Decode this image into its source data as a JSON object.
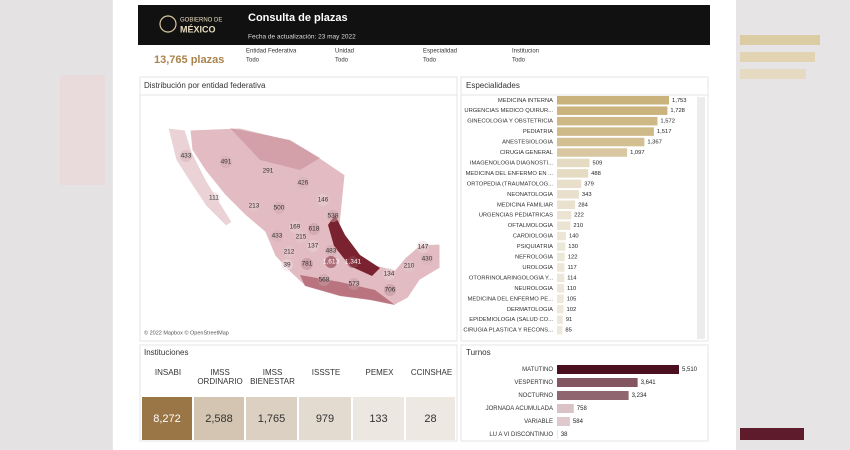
{
  "header": {
    "logo_top": "GOBIERNO DE",
    "logo_bottom": "MÉXICO",
    "title": "Consulta de plazas",
    "date": "Fecha de actualización: 23 may 2022"
  },
  "summary": {
    "total": "13,765 plazas",
    "filters": [
      {
        "label": "Entidad Federativa",
        "value": "Todo"
      },
      {
        "label": "Unidad",
        "value": "Todo"
      },
      {
        "label": "Especialidad",
        "value": "Todo"
      },
      {
        "label": "Institucion",
        "value": "Todo"
      }
    ]
  },
  "map": {
    "title": "Distribución por entidad federativa",
    "attribution": "© 2022 Mapbox © OpenStreetMap",
    "color_range": [
      "#f3e3e5",
      "#7b2231"
    ],
    "values": [
      433,
      491,
      291,
      111,
      426,
      213,
      500,
      146,
      538,
      169,
      618,
      433,
      215,
      212,
      137,
      483,
      39,
      781,
      1613,
      1341,
      568,
      573,
      134,
      706,
      210,
      147,
      430
    ],
    "value_labels": [
      "433",
      "491",
      "291",
      "111",
      "426",
      "213",
      "500",
      "146",
      "538",
      "169",
      "618",
      "433",
      "215",
      "212",
      "137",
      "483",
      "39",
      "781",
      "1,613",
      "1,341",
      "568",
      "573",
      "134",
      "706",
      "210",
      "147",
      "430"
    ]
  },
  "especialidades": {
    "type": "bar",
    "title": "Especialidades",
    "color_range": [
      "#f0ebdf",
      "#c9b27c"
    ],
    "categories": [
      "MEDICINA INTERNA",
      "URGENCIAS MEDICO QUIRUR...",
      "GINECOLOGIA Y OBSTETRICIA",
      "PEDIATRIA",
      "ANESTESIOLOGIA",
      "CIRUGIA GENERAL",
      "IMAGENOLOGIA DIAGNOSTI...",
      "MEDICINA DEL ENFERMO EN ...",
      "ORTOPEDIA (TRAUMATOLOG...",
      "NEONATOLOGIA",
      "MEDICINA FAMILIAR",
      "URGENCIAS PEDIATRICAS",
      "OFTALMOLOGIA",
      "CARDIOLOGIA",
      "PSIQUIATRIA",
      "NEFROLOGIA",
      "UROLOGIA",
      "OTORRINOLARINGOLOGIA Y...",
      "NEUROLOGIA",
      "MEDICINA DEL ENFERMO PE...",
      "DERMATOLOGIA",
      "EPIDEMIOLOGIA (SALUD CO...",
      "CIRUGIA PLASTICA Y RECONS..."
    ],
    "values": [
      1753,
      1728,
      1572,
      1517,
      1367,
      1097,
      509,
      488,
      379,
      343,
      284,
      222,
      210,
      140,
      130,
      122,
      117,
      114,
      110,
      105,
      102,
      91,
      85
    ],
    "value_labels": [
      "1,753",
      "1,728",
      "1,572",
      "1,517",
      "1,367",
      "1,097",
      "509",
      "488",
      "379",
      "343",
      "284",
      "222",
      "210",
      "140",
      "130",
      "122",
      "117",
      "114",
      "110",
      "105",
      "102",
      "91",
      "85"
    ]
  },
  "instituciones": {
    "title": "Instituciones",
    "color_range": [
      "#ede9e3",
      "#9a7546"
    ],
    "categories": [
      "INSABI",
      "IMSS ORDINARIO",
      "IMSS BIENESTAR",
      "ISSSTE",
      "PEMEX",
      "CCINSHAE"
    ],
    "values": [
      8272,
      2588,
      1765,
      979,
      133,
      28
    ],
    "value_labels": [
      "8,272",
      "2,588",
      "1,765",
      "979",
      "133",
      "28"
    ]
  },
  "turnos": {
    "type": "bar",
    "title": "Turnos",
    "color_range": [
      "#f1dfe2",
      "#4a1020"
    ],
    "categories": [
      "MATUTINO",
      "VESPERTINO",
      "NOCTURNO",
      "JORNADA ACUMULADA",
      "VARIABLE",
      "LU A VI DISCONTINUO"
    ],
    "values": [
      5510,
      3641,
      3234,
      758,
      584,
      38
    ],
    "value_labels": [
      "5,510",
      "3,641",
      "3,234",
      "758",
      "584",
      "38"
    ]
  }
}
